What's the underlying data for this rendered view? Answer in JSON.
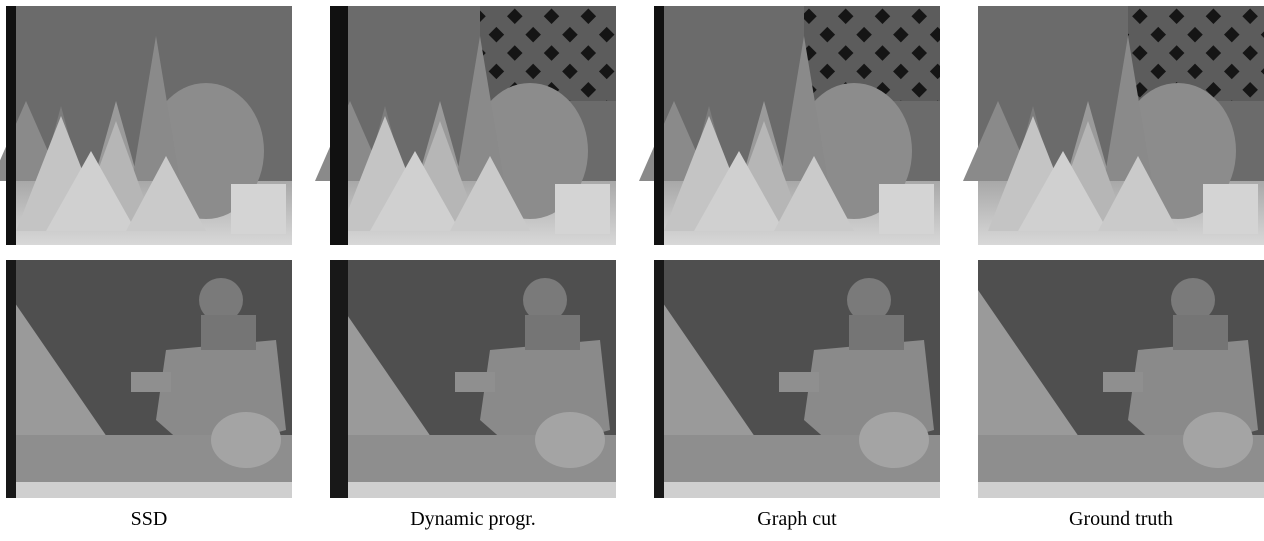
{
  "captions": [
    "SSD",
    "Dynamic progr.",
    "Graph cut",
    "Ground truth"
  ]
}
